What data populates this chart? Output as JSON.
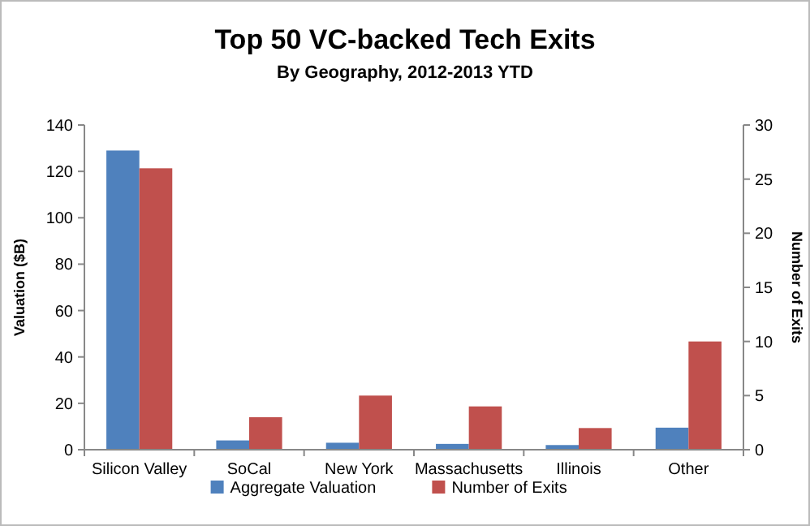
{
  "chart_data": {
    "type": "bar",
    "title": "Top 50 VC-backed Tech Exits",
    "subtitle": "By Geography, 2012-2013 YTD",
    "ylabel": "Valuation ($B)",
    "y2label": "Number of Exits",
    "categories": [
      "Silicon Valley",
      "SoCal",
      "New York",
      "Massachusetts",
      "Illinois",
      "Other"
    ],
    "series": [
      {
        "name": "Aggregate Valuation",
        "color": "#4f81bd",
        "values": [
          129,
          4,
          3,
          2.5,
          2,
          9.5
        ]
      },
      {
        "name": "Number of Exits",
        "color": "#c0504d",
        "axis": "y2",
        "values": [
          26,
          3,
          5,
          4,
          2,
          10
        ]
      }
    ],
    "ylim": [
      0,
      140
    ],
    "yticks": [
      0,
      20,
      40,
      60,
      80,
      100,
      120,
      140
    ],
    "y2lim": [
      0,
      30
    ],
    "y2ticks": [
      0,
      5,
      10,
      15,
      20,
      25,
      30
    ],
    "grid": false,
    "legend": "bottom"
  }
}
